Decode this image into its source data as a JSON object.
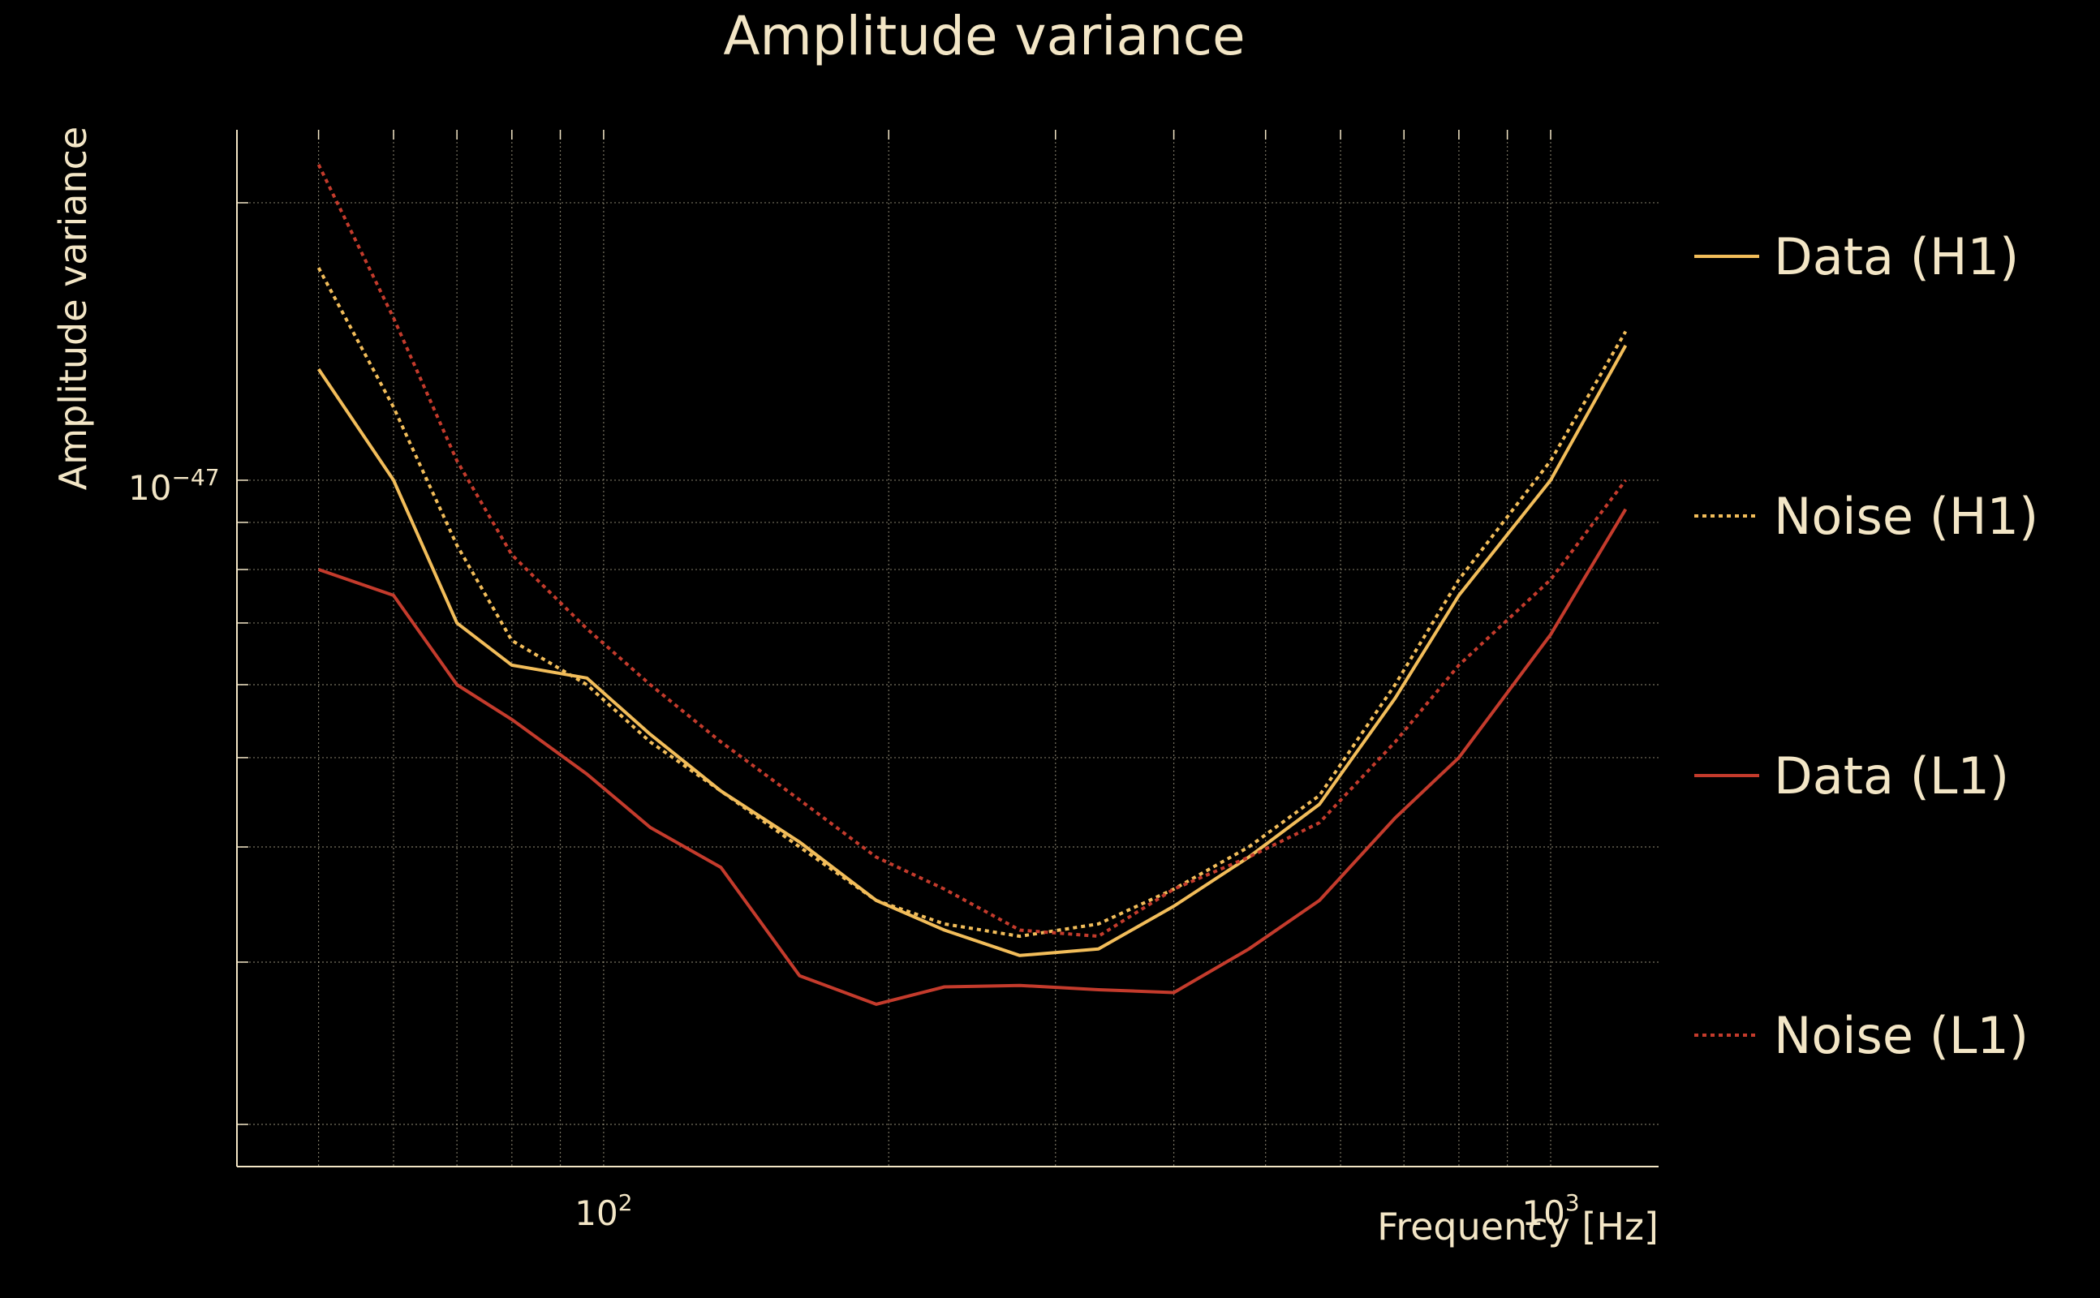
{
  "chart_data": {
    "type": "line",
    "title": "Amplitude variance",
    "xlabel": "Frequency [Hz]",
    "ylabel": "Amplitude variance",
    "xscale": "log",
    "yscale": "log",
    "xlim": [
      41,
      1300
    ],
    "ylim": [
      1.8e-48,
      2.4e-47
    ],
    "x_ticks": [
      {
        "value": 100,
        "base": "10",
        "exp": "2"
      },
      {
        "value": 1000,
        "base": "10",
        "exp": "3"
      }
    ],
    "y_ticks": [
      {
        "value": 1e-47,
        "base": "10",
        "exp": "−47"
      }
    ],
    "grid": true,
    "legend_placement": "right",
    "background": "#000000",
    "text_color": "#f3e6c6",
    "x": [
      50,
      60,
      70,
      80,
      96,
      112,
      133,
      161,
      194,
      229,
      275,
      333,
      400,
      480,
      570,
      685,
      800,
      1000,
      1200
    ],
    "series": [
      {
        "name": "Data (H1)",
        "color": "#f2bd5a",
        "dash": "solid",
        "values": [
          1.32e-47,
          1e-47,
          7e-48,
          6.3e-48,
          6.1e-48,
          5.3e-48,
          4.6e-48,
          4.05e-48,
          3.5e-48,
          3.25e-48,
          3.05e-48,
          3.1e-48,
          3.45e-48,
          3.9e-48,
          4.45e-48,
          5.8e-48,
          7.5e-48,
          1e-47,
          1.4e-47
        ]
      },
      {
        "name": "Noise (H1)",
        "color": "#f2bd5a",
        "dash": "dotted",
        "values": [
          1.7e-47,
          1.2e-47,
          8.5e-48,
          6.7e-48,
          6e-48,
          5.2e-48,
          4.6e-48,
          4e-48,
          3.5e-48,
          3.3e-48,
          3.2e-48,
          3.3e-48,
          3.6e-48,
          4e-48,
          4.55e-48,
          6e-48,
          7.8e-48,
          1.05e-47,
          1.45e-47
        ]
      },
      {
        "name": "Data (L1)",
        "color": "#c43b2c",
        "dash": "solid",
        "values": [
          8e-48,
          7.5e-48,
          6e-48,
          5.5e-48,
          4.8e-48,
          4.2e-48,
          3.8e-48,
          2.9e-48,
          2.7e-48,
          2.82e-48,
          2.83e-48,
          2.8e-48,
          2.78e-48,
          3.1e-48,
          3.5e-48,
          4.3e-48,
          5e-48,
          6.8e-48,
          9.3e-48
        ]
      },
      {
        "name": "Noise (L1)",
        "color": "#c43b2c",
        "dash": "dotted",
        "values": [
          2.2e-47,
          1.5e-47,
          1.05e-47,
          8.3e-48,
          6.9e-48,
          6e-48,
          5.2e-48,
          4.5e-48,
          3.9e-48,
          3.6e-48,
          3.25e-48,
          3.2e-48,
          3.6e-48,
          3.9e-48,
          4.25e-48,
          5.2e-48,
          6.3e-48,
          7.8e-48,
          1e-47
        ]
      }
    ]
  }
}
